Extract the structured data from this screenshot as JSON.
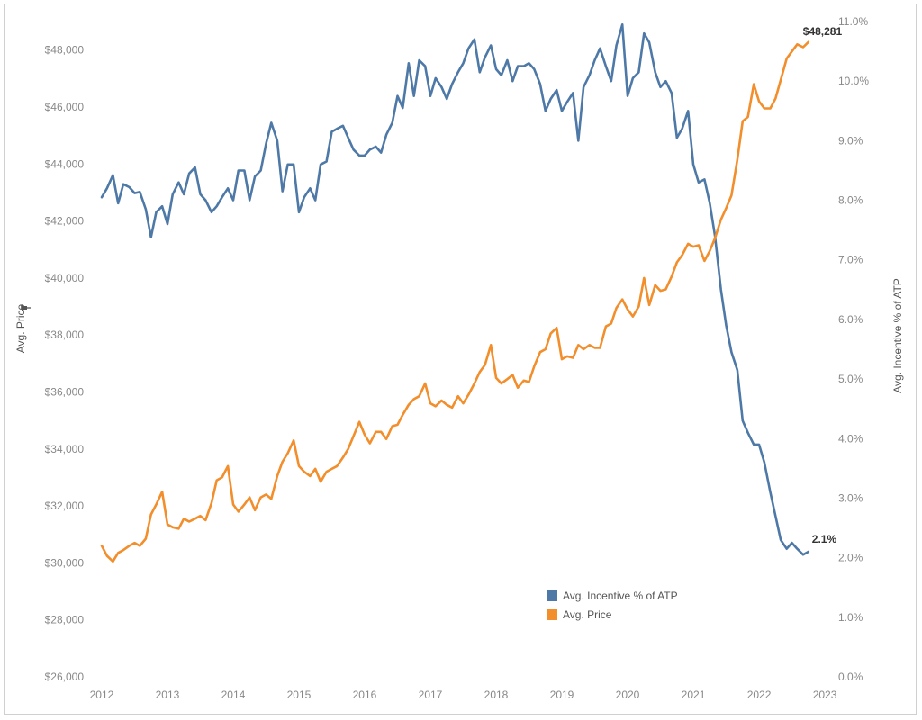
{
  "chart_data": {
    "type": "line",
    "y_left_label": "Avg. Price",
    "y_right_label": "Avg. Incentive % of ATP",
    "y_left_range": [
      26000,
      49000
    ],
    "y_right_range": [
      0.0,
      11.0
    ],
    "x_range": [
      2011.85,
      2023.15
    ],
    "x_ticks": [
      "2012",
      "2013",
      "2014",
      "2015",
      "2016",
      "2017",
      "2018",
      "2019",
      "2020",
      "2021",
      "2022",
      "2023"
    ],
    "y_left_ticks": [
      "$48,000",
      "$46,000",
      "$44,000",
      "$42,000",
      "$40,000",
      "$38,000",
      "$36,000",
      "$34,000",
      "$32,000",
      "$30,000",
      "$28,000",
      "$26,000"
    ],
    "y_right_ticks": [
      "11.0%",
      "10.0%",
      "9.0%",
      "8.0%",
      "7.0%",
      "6.0%",
      "5.0%",
      "4.0%",
      "3.0%",
      "2.0%",
      "1.0%",
      "0.0%"
    ],
    "legend_position": "bottom-center",
    "grid": false,
    "series": [
      {
        "name": "Avg. Incentive % of ATP",
        "axis": "right",
        "color": "#4e79a7",
        "end_label": "2.1%",
        "points": [
          [
            2012.0,
            8.05
          ],
          [
            2012.08,
            8.2
          ],
          [
            2012.17,
            8.42
          ],
          [
            2012.25,
            7.95
          ],
          [
            2012.33,
            8.27
          ],
          [
            2012.42,
            8.22
          ],
          [
            2012.5,
            8.12
          ],
          [
            2012.58,
            8.14
          ],
          [
            2012.67,
            7.85
          ],
          [
            2012.75,
            7.38
          ],
          [
            2012.83,
            7.8
          ],
          [
            2012.92,
            7.9
          ],
          [
            2013.0,
            7.6
          ],
          [
            2013.08,
            8.1
          ],
          [
            2013.17,
            8.3
          ],
          [
            2013.25,
            8.1
          ],
          [
            2013.33,
            8.45
          ],
          [
            2013.42,
            8.55
          ],
          [
            2013.5,
            8.1
          ],
          [
            2013.58,
            8.0
          ],
          [
            2013.67,
            7.8
          ],
          [
            2013.75,
            7.9
          ],
          [
            2013.83,
            8.05
          ],
          [
            2013.92,
            8.2
          ],
          [
            2014.0,
            8.0
          ],
          [
            2014.08,
            8.5
          ],
          [
            2014.17,
            8.5
          ],
          [
            2014.25,
            8.0
          ],
          [
            2014.33,
            8.4
          ],
          [
            2014.42,
            8.5
          ],
          [
            2014.5,
            8.95
          ],
          [
            2014.58,
            9.3
          ],
          [
            2014.67,
            9.0
          ],
          [
            2014.75,
            8.15
          ],
          [
            2014.83,
            8.6
          ],
          [
            2014.92,
            8.6
          ],
          [
            2015.0,
            7.8
          ],
          [
            2015.08,
            8.05
          ],
          [
            2015.17,
            8.2
          ],
          [
            2015.25,
            8.0
          ],
          [
            2015.33,
            8.6
          ],
          [
            2015.42,
            8.65
          ],
          [
            2015.5,
            9.15
          ],
          [
            2015.58,
            9.2
          ],
          [
            2015.67,
            9.25
          ],
          [
            2015.75,
            9.05
          ],
          [
            2015.83,
            8.85
          ],
          [
            2015.92,
            8.75
          ],
          [
            2016.0,
            8.75
          ],
          [
            2016.08,
            8.85
          ],
          [
            2016.17,
            8.9
          ],
          [
            2016.25,
            8.8
          ],
          [
            2016.33,
            9.1
          ],
          [
            2016.42,
            9.3
          ],
          [
            2016.5,
            9.75
          ],
          [
            2016.58,
            9.55
          ],
          [
            2016.67,
            10.3
          ],
          [
            2016.75,
            9.75
          ],
          [
            2016.83,
            10.35
          ],
          [
            2016.92,
            10.25
          ],
          [
            2017.0,
            9.75
          ],
          [
            2017.08,
            10.05
          ],
          [
            2017.17,
            9.9
          ],
          [
            2017.25,
            9.7
          ],
          [
            2017.33,
            9.95
          ],
          [
            2017.42,
            10.15
          ],
          [
            2017.5,
            10.3
          ],
          [
            2017.58,
            10.55
          ],
          [
            2017.67,
            10.7
          ],
          [
            2017.75,
            10.15
          ],
          [
            2017.83,
            10.4
          ],
          [
            2017.92,
            10.6
          ],
          [
            2018.0,
            10.2
          ],
          [
            2018.08,
            10.1
          ],
          [
            2018.17,
            10.35
          ],
          [
            2018.25,
            10.0
          ],
          [
            2018.33,
            10.25
          ],
          [
            2018.42,
            10.25
          ],
          [
            2018.5,
            10.3
          ],
          [
            2018.58,
            10.2
          ],
          [
            2018.67,
            9.95
          ],
          [
            2018.75,
            9.5
          ],
          [
            2018.83,
            9.7
          ],
          [
            2018.92,
            9.85
          ],
          [
            2019.0,
            9.5
          ],
          [
            2019.08,
            9.65
          ],
          [
            2019.17,
            9.8
          ],
          [
            2019.25,
            9.0
          ],
          [
            2019.33,
            9.9
          ],
          [
            2019.42,
            10.1
          ],
          [
            2019.5,
            10.35
          ],
          [
            2019.58,
            10.55
          ],
          [
            2019.67,
            10.25
          ],
          [
            2019.75,
            10.0
          ],
          [
            2019.83,
            10.6
          ],
          [
            2019.92,
            10.95
          ],
          [
            2020.0,
            9.75
          ],
          [
            2020.08,
            10.05
          ],
          [
            2020.17,
            10.15
          ],
          [
            2020.25,
            10.8
          ],
          [
            2020.33,
            10.65
          ],
          [
            2020.42,
            10.15
          ],
          [
            2020.5,
            9.9
          ],
          [
            2020.58,
            10.0
          ],
          [
            2020.67,
            9.8
          ],
          [
            2020.75,
            9.05
          ],
          [
            2020.83,
            9.2
          ],
          [
            2020.92,
            9.5
          ],
          [
            2021.0,
            8.6
          ],
          [
            2021.08,
            8.3
          ],
          [
            2021.17,
            8.35
          ],
          [
            2021.25,
            7.95
          ],
          [
            2021.33,
            7.4
          ],
          [
            2021.42,
            6.5
          ],
          [
            2021.5,
            5.9
          ],
          [
            2021.58,
            5.45
          ],
          [
            2021.67,
            5.15
          ],
          [
            2021.75,
            4.3
          ],
          [
            2021.83,
            4.1
          ],
          [
            2021.92,
            3.9
          ],
          [
            2022.0,
            3.9
          ],
          [
            2022.08,
            3.6
          ],
          [
            2022.17,
            3.1
          ],
          [
            2022.25,
            2.7
          ],
          [
            2022.33,
            2.3
          ],
          [
            2022.42,
            2.15
          ],
          [
            2022.5,
            2.25
          ],
          [
            2022.58,
            2.15
          ],
          [
            2022.67,
            2.05
          ],
          [
            2022.75,
            2.1
          ]
        ]
      },
      {
        "name": "Avg. Price",
        "axis": "left",
        "color": "#f28e2b",
        "end_label": "$48,281",
        "points": [
          [
            2012.0,
            30600
          ],
          [
            2012.08,
            30250
          ],
          [
            2012.17,
            30050
          ],
          [
            2012.25,
            30350
          ],
          [
            2012.33,
            30450
          ],
          [
            2012.42,
            30600
          ],
          [
            2012.5,
            30700
          ],
          [
            2012.58,
            30600
          ],
          [
            2012.67,
            30850
          ],
          [
            2012.75,
            31700
          ],
          [
            2012.83,
            32050
          ],
          [
            2012.92,
            32500
          ],
          [
            2013.0,
            31350
          ],
          [
            2013.08,
            31250
          ],
          [
            2013.17,
            31200
          ],
          [
            2013.25,
            31550
          ],
          [
            2013.33,
            31450
          ],
          [
            2013.42,
            31550
          ],
          [
            2013.5,
            31650
          ],
          [
            2013.58,
            31500
          ],
          [
            2013.67,
            32100
          ],
          [
            2013.75,
            32900
          ],
          [
            2013.83,
            33000
          ],
          [
            2013.92,
            33400
          ],
          [
            2014.0,
            32050
          ],
          [
            2014.08,
            31800
          ],
          [
            2014.17,
            32050
          ],
          [
            2014.25,
            32300
          ],
          [
            2014.33,
            31850
          ],
          [
            2014.42,
            32300
          ],
          [
            2014.5,
            32400
          ],
          [
            2014.58,
            32250
          ],
          [
            2014.67,
            33050
          ],
          [
            2014.75,
            33550
          ],
          [
            2014.83,
            33850
          ],
          [
            2014.92,
            34300
          ],
          [
            2015.0,
            33400
          ],
          [
            2015.08,
            33200
          ],
          [
            2015.17,
            33050
          ],
          [
            2015.25,
            33300
          ],
          [
            2015.33,
            32850
          ],
          [
            2015.42,
            33200
          ],
          [
            2015.5,
            33300
          ],
          [
            2015.58,
            33400
          ],
          [
            2015.67,
            33700
          ],
          [
            2015.75,
            34000
          ],
          [
            2015.83,
            34450
          ],
          [
            2015.92,
            34950
          ],
          [
            2016.0,
            34500
          ],
          [
            2016.08,
            34200
          ],
          [
            2016.17,
            34600
          ],
          [
            2016.25,
            34600
          ],
          [
            2016.33,
            34350
          ],
          [
            2016.42,
            34800
          ],
          [
            2016.5,
            34850
          ],
          [
            2016.58,
            35200
          ],
          [
            2016.67,
            35550
          ],
          [
            2016.75,
            35750
          ],
          [
            2016.83,
            35850
          ],
          [
            2016.92,
            36300
          ],
          [
            2017.0,
            35600
          ],
          [
            2017.08,
            35500
          ],
          [
            2017.17,
            35700
          ],
          [
            2017.25,
            35550
          ],
          [
            2017.33,
            35450
          ],
          [
            2017.42,
            35850
          ],
          [
            2017.5,
            35600
          ],
          [
            2017.58,
            35900
          ],
          [
            2017.67,
            36300
          ],
          [
            2017.75,
            36700
          ],
          [
            2017.83,
            36950
          ],
          [
            2017.92,
            37650
          ],
          [
            2018.0,
            36500
          ],
          [
            2018.08,
            36300
          ],
          [
            2018.17,
            36450
          ],
          [
            2018.25,
            36600
          ],
          [
            2018.33,
            36150
          ],
          [
            2018.42,
            36400
          ],
          [
            2018.5,
            36350
          ],
          [
            2018.58,
            36900
          ],
          [
            2018.67,
            37400
          ],
          [
            2018.75,
            37500
          ],
          [
            2018.83,
            38050
          ],
          [
            2018.92,
            38250
          ],
          [
            2019.0,
            37150
          ],
          [
            2019.08,
            37250
          ],
          [
            2019.17,
            37200
          ],
          [
            2019.25,
            37650
          ],
          [
            2019.33,
            37500
          ],
          [
            2019.42,
            37650
          ],
          [
            2019.5,
            37550
          ],
          [
            2019.58,
            37550
          ],
          [
            2019.67,
            38300
          ],
          [
            2019.75,
            38400
          ],
          [
            2019.83,
            38950
          ],
          [
            2019.92,
            39250
          ],
          [
            2020.0,
            38900
          ],
          [
            2020.08,
            38650
          ],
          [
            2020.17,
            39000
          ],
          [
            2020.25,
            40000
          ],
          [
            2020.33,
            39050
          ],
          [
            2020.42,
            39750
          ],
          [
            2020.5,
            39550
          ],
          [
            2020.58,
            39600
          ],
          [
            2020.67,
            40050
          ],
          [
            2020.75,
            40550
          ],
          [
            2020.83,
            40800
          ],
          [
            2020.92,
            41200
          ],
          [
            2021.0,
            41100
          ],
          [
            2021.08,
            41150
          ],
          [
            2021.17,
            40600
          ],
          [
            2021.25,
            40950
          ],
          [
            2021.33,
            41400
          ],
          [
            2021.42,
            42050
          ],
          [
            2021.5,
            42450
          ],
          [
            2021.58,
            42900
          ],
          [
            2021.67,
            44150
          ],
          [
            2021.75,
            45500
          ],
          [
            2021.83,
            45650
          ],
          [
            2021.92,
            46800
          ],
          [
            2022.0,
            46200
          ],
          [
            2022.08,
            45950
          ],
          [
            2022.17,
            45950
          ],
          [
            2022.25,
            46300
          ],
          [
            2022.33,
            46950
          ],
          [
            2022.42,
            47700
          ],
          [
            2022.5,
            47950
          ],
          [
            2022.58,
            48200
          ],
          [
            2022.67,
            48100
          ],
          [
            2022.75,
            48281
          ]
        ]
      }
    ]
  }
}
